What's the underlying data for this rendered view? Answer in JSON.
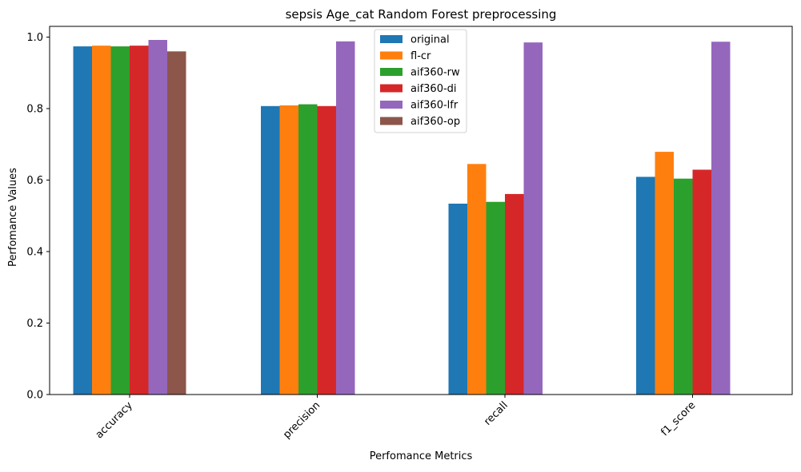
{
  "chart_data": {
    "type": "bar",
    "title": "sepsis Age_cat Random Forest preprocessing",
    "xlabel": "Perfomance Metrics",
    "ylabel": "Perfomance Values",
    "ylim": [
      0,
      1.03
    ],
    "yticks": [
      "0.0",
      "0.2",
      "0.4",
      "0.6",
      "0.8",
      "1.0"
    ],
    "categories": [
      "accuracy",
      "precision",
      "recall",
      "f1_score"
    ],
    "series": [
      {
        "name": "original",
        "color": "#1f77b4",
        "values": [
          0.974,
          0.807,
          0.534,
          0.609
        ]
      },
      {
        "name": "fl-cr",
        "color": "#ff7f0e",
        "values": [
          0.976,
          0.809,
          0.645,
          0.679
        ]
      },
      {
        "name": "aif360-rw",
        "color": "#2ca02c",
        "values": [
          0.974,
          0.812,
          0.539,
          0.604
        ]
      },
      {
        "name": "aif360-di",
        "color": "#d62728",
        "values": [
          0.976,
          0.807,
          0.561,
          0.629
        ]
      },
      {
        "name": "aif360-lfr",
        "color": "#9467bd",
        "values": [
          0.992,
          0.988,
          0.985,
          0.987
        ]
      },
      {
        "name": "aif360-op",
        "color": "#8c564b",
        "values": [
          0.96,
          null,
          null,
          null
        ]
      }
    ],
    "grid": false,
    "legend_position": "top-center"
  }
}
